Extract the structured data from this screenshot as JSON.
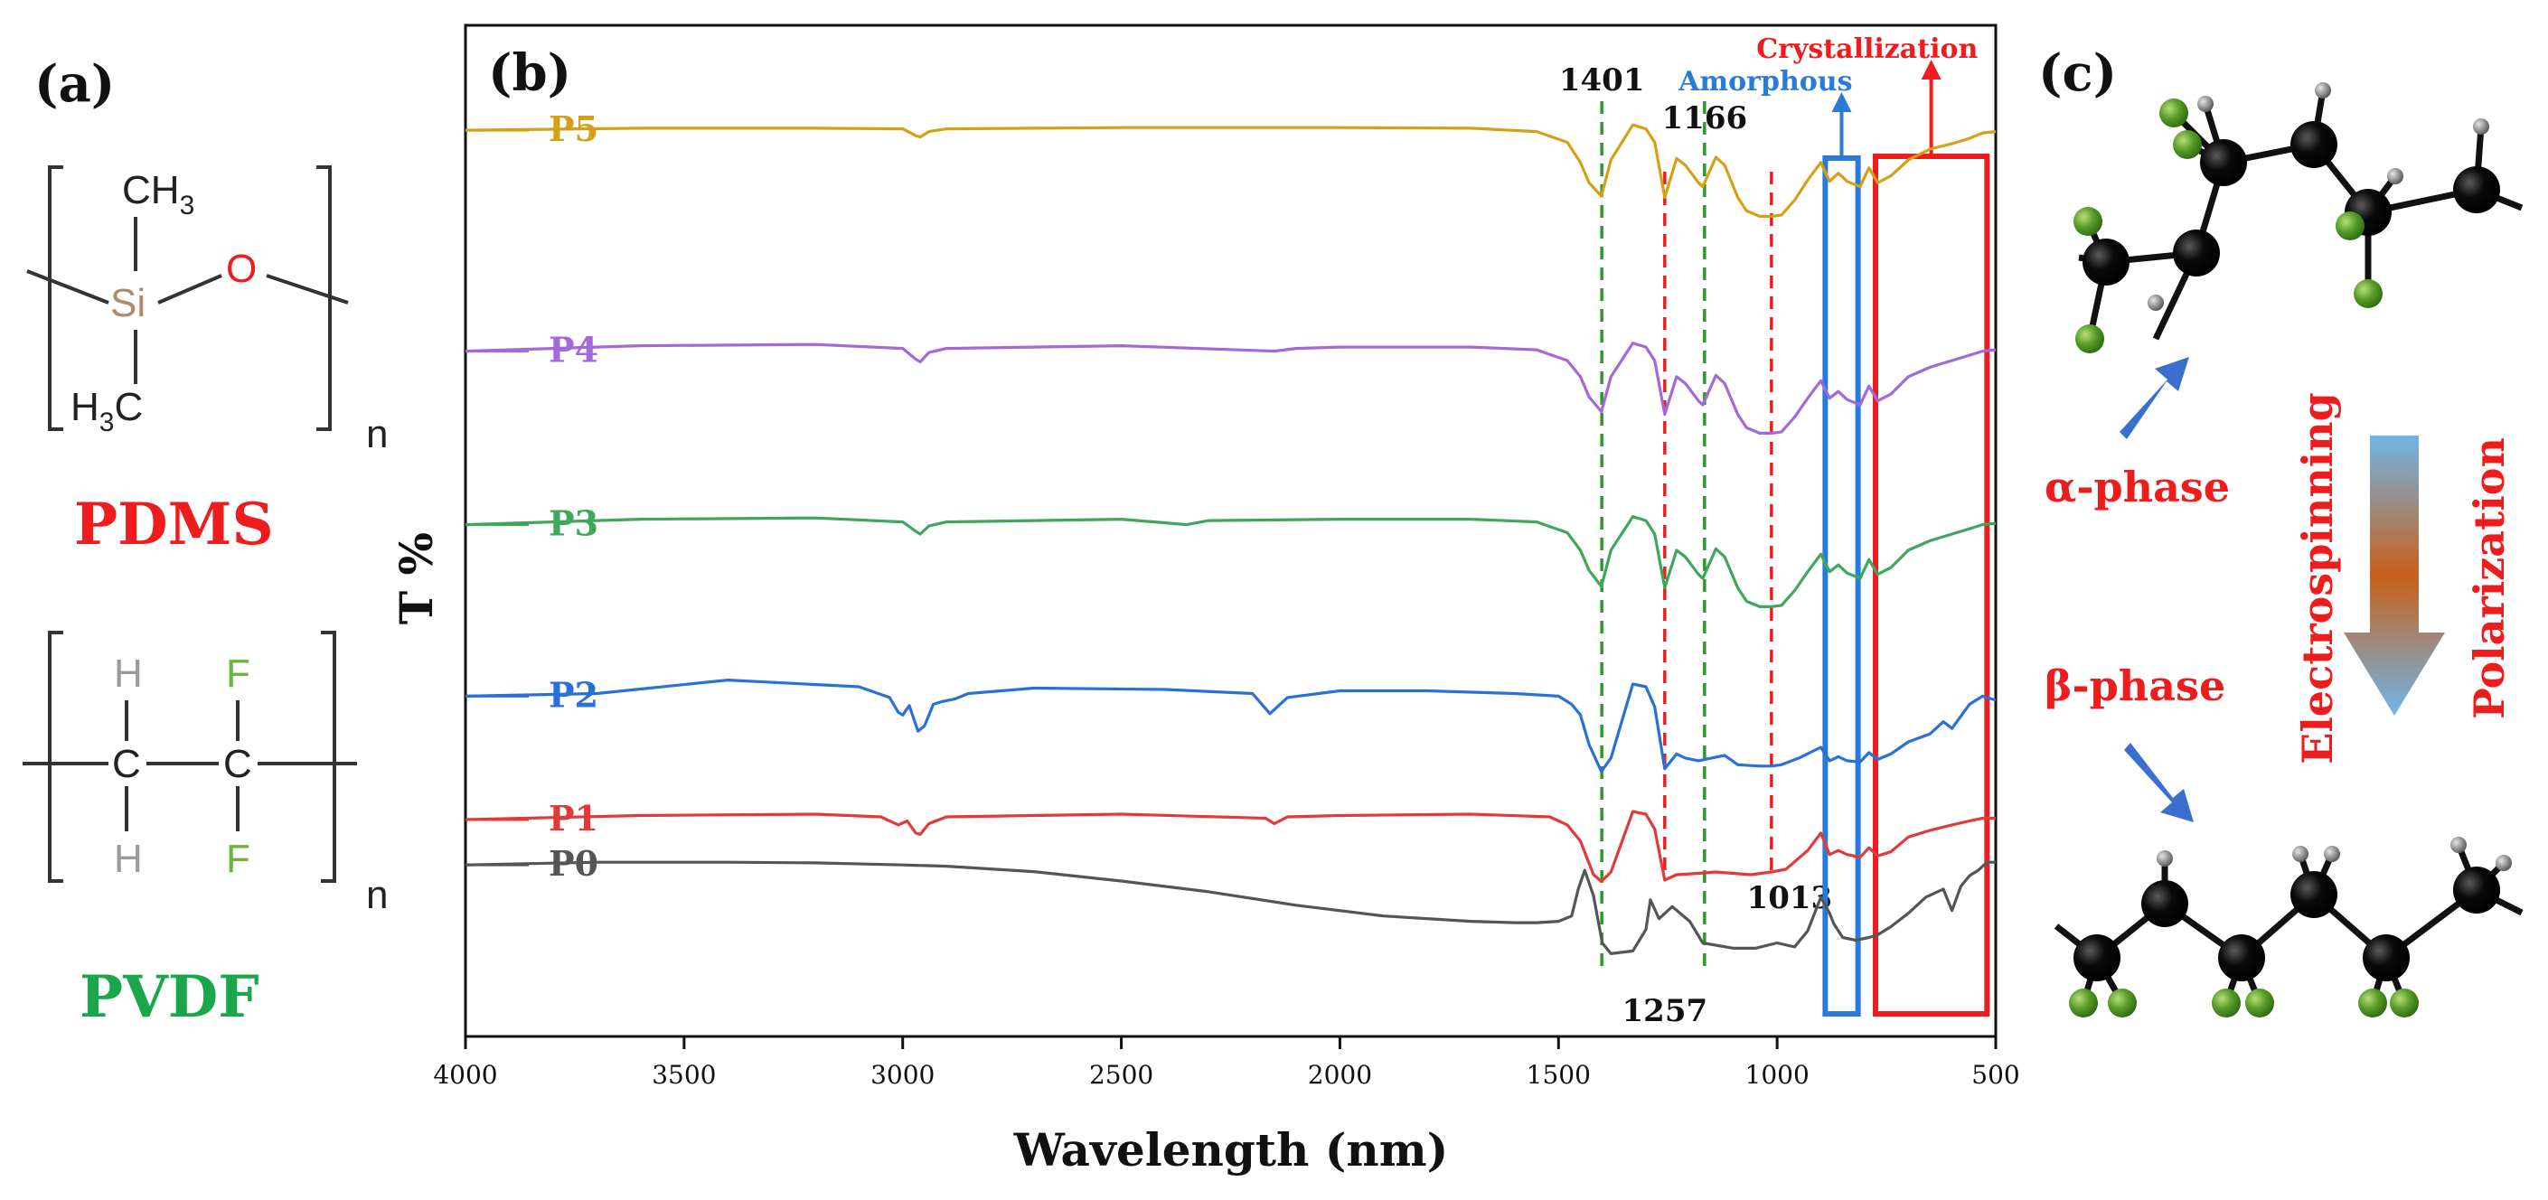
{
  "panels": {
    "a": "(a)",
    "b": "(b)",
    "c": "(c)"
  },
  "panel_a": {
    "pdms": {
      "name": "PDMS",
      "name_color": "#ee1c1c",
      "ch3_top": "CH",
      "ch3_top_sub": "3",
      "si": "Si",
      "o": "O",
      "h3c_bottom": "H",
      "h3c_bottom_sub": "3",
      "h3c_bottom_c": "C",
      "n": "n",
      "si_color": "#b08a6a",
      "o_color": "#ee1c1c"
    },
    "pvdf": {
      "name": "PVDF",
      "name_color": "#1aa64a",
      "h_top": "H",
      "h_bottom": "H",
      "c1": "C",
      "c2": "C",
      "f_top": "F",
      "f_bottom": "F",
      "n": "n",
      "h_color": "#9a9a9a",
      "f_color": "#6db33f"
    }
  },
  "panel_c": {
    "alpha": "α-phase",
    "beta": "β-phase",
    "electrospinning": "Electrospinning",
    "polarization": "Polarization",
    "carbon_color": "#0a0a0a",
    "fluorine_color": "#5a9e2a",
    "hydrogen_color": "#9b9b9b",
    "arrow_color": "#3b6fcf"
  },
  "chart_data": {
    "type": "line",
    "title": "",
    "xlabel": "Wavelength (nm)",
    "ylabel": "T %",
    "xlim": [
      4000,
      500
    ],
    "x_ticks": [
      4000,
      3500,
      3000,
      2500,
      2000,
      1500,
      1000,
      500
    ],
    "grid": false,
    "series": [
      {
        "name": "P5",
        "color": "#d4a017",
        "offset": 85,
        "x": [
          4000,
          3600,
          3200,
          3000,
          2970,
          2960,
          2940,
          2900,
          2500,
          2000,
          1700,
          1550,
          1480,
          1450,
          1430,
          1402,
          1380,
          1330,
          1300,
          1280,
          1257,
          1230,
          1210,
          1180,
          1170,
          1140,
          1120,
          1090,
          1070,
          1040,
          1013,
          990,
          960,
          930,
          900,
          880,
          860,
          840,
          810,
          790,
          770,
          740,
          700,
          650,
          600,
          560,
          530,
          500
        ],
        "y": [
          0.94,
          0.955,
          0.955,
          0.95,
          0.9,
          0.89,
          0.93,
          0.95,
          0.96,
          0.96,
          0.955,
          0.93,
          0.85,
          0.7,
          0.55,
          0.45,
          0.72,
          0.98,
          0.95,
          0.85,
          0.44,
          0.73,
          0.68,
          0.55,
          0.52,
          0.74,
          0.68,
          0.44,
          0.34,
          0.3,
          0.3,
          0.31,
          0.42,
          0.57,
          0.7,
          0.56,
          0.62,
          0.56,
          0.52,
          0.66,
          0.55,
          0.6,
          0.72,
          0.8,
          0.84,
          0.88,
          0.92,
          0.93
        ]
      },
      {
        "name": "P4",
        "color": "#a468d8",
        "offset": 60,
        "x": [
          4000,
          3600,
          3200,
          3000,
          2970,
          2960,
          2940,
          2900,
          2500,
          2150,
          2100,
          2000,
          1700,
          1550,
          1480,
          1450,
          1430,
          1402,
          1380,
          1330,
          1300,
          1280,
          1257,
          1230,
          1210,
          1180,
          1170,
          1140,
          1120,
          1090,
          1070,
          1040,
          1013,
          990,
          960,
          930,
          900,
          880,
          860,
          840,
          810,
          790,
          770,
          740,
          700,
          650,
          600,
          560,
          530,
          500
        ],
        "y": [
          0.91,
          0.95,
          0.96,
          0.93,
          0.85,
          0.83,
          0.9,
          0.93,
          0.95,
          0.91,
          0.93,
          0.94,
          0.94,
          0.92,
          0.84,
          0.72,
          0.57,
          0.46,
          0.72,
          0.97,
          0.94,
          0.84,
          0.44,
          0.72,
          0.67,
          0.54,
          0.51,
          0.73,
          0.67,
          0.44,
          0.34,
          0.3,
          0.3,
          0.31,
          0.42,
          0.56,
          0.69,
          0.56,
          0.61,
          0.55,
          0.51,
          0.65,
          0.54,
          0.59,
          0.72,
          0.79,
          0.84,
          0.88,
          0.91,
          0.92
        ]
      },
      {
        "name": "P3",
        "color": "#3fa65a",
        "offset": 40,
        "x": [
          4000,
          3600,
          3200,
          3000,
          2970,
          2960,
          2940,
          2900,
          2500,
          2350,
          2300,
          2000,
          1700,
          1550,
          1480,
          1450,
          1430,
          1402,
          1380,
          1330,
          1300,
          1280,
          1257,
          1230,
          1210,
          1180,
          1170,
          1140,
          1120,
          1090,
          1070,
          1040,
          1013,
          990,
          960,
          930,
          900,
          880,
          860,
          840,
          810,
          790,
          770,
          740,
          700,
          650,
          600,
          560,
          530,
          500
        ],
        "y": [
          0.91,
          0.95,
          0.96,
          0.93,
          0.86,
          0.84,
          0.9,
          0.93,
          0.95,
          0.91,
          0.94,
          0.95,
          0.95,
          0.93,
          0.85,
          0.72,
          0.57,
          0.45,
          0.72,
          0.97,
          0.94,
          0.84,
          0.44,
          0.72,
          0.67,
          0.54,
          0.51,
          0.73,
          0.67,
          0.44,
          0.34,
          0.3,
          0.3,
          0.31,
          0.42,
          0.56,
          0.69,
          0.56,
          0.61,
          0.55,
          0.51,
          0.65,
          0.54,
          0.59,
          0.72,
          0.79,
          0.84,
          0.88,
          0.91,
          0.92
        ]
      },
      {
        "name": "P2",
        "color": "#2a70d8",
        "offset": 21,
        "x": [
          4000,
          3700,
          3400,
          3100,
          3030,
          3010,
          3000,
          2985,
          2965,
          2950,
          2930,
          2910,
          2880,
          2850,
          2700,
          2400,
          2200,
          2160,
          2120,
          2000,
          1800,
          1600,
          1500,
          1470,
          1450,
          1430,
          1402,
          1380,
          1330,
          1300,
          1280,
          1257,
          1230,
          1210,
          1180,
          1150,
          1120,
          1090,
          1040,
          1013,
          990,
          950,
          900,
          880,
          860,
          840,
          810,
          790,
          770,
          740,
          700,
          650,
          620,
          600,
          560,
          530,
          500
        ],
        "y": [
          0.86,
          0.88,
          0.98,
          0.93,
          0.85,
          0.74,
          0.72,
          0.79,
          0.6,
          0.64,
          0.8,
          0.82,
          0.84,
          0.88,
          0.92,
          0.91,
          0.88,
          0.73,
          0.85,
          0.9,
          0.9,
          0.88,
          0.86,
          0.8,
          0.72,
          0.5,
          0.3,
          0.4,
          0.95,
          0.93,
          0.78,
          0.32,
          0.43,
          0.4,
          0.38,
          0.4,
          0.42,
          0.35,
          0.34,
          0.34,
          0.35,
          0.4,
          0.48,
          0.38,
          0.41,
          0.38,
          0.37,
          0.44,
          0.39,
          0.43,
          0.52,
          0.58,
          0.67,
          0.62,
          0.8,
          0.86,
          0.83
        ]
      },
      {
        "name": "P1",
        "color": "#e03a3a",
        "offset": 6,
        "x": [
          4000,
          3600,
          3200,
          3050,
          3010,
          2990,
          2970,
          2960,
          2940,
          2900,
          2500,
          2170,
          2150,
          2120,
          2000,
          1700,
          1520,
          1480,
          1450,
          1420,
          1402,
          1380,
          1330,
          1300,
          1280,
          1257,
          1230,
          1180,
          1140,
          1100,
          1060,
          1013,
          980,
          930,
          900,
          880,
          860,
          840,
          810,
          790,
          770,
          740,
          700,
          650,
          600,
          560,
          530,
          500
        ],
        "y": [
          0.91,
          0.94,
          0.95,
          0.93,
          0.87,
          0.9,
          0.81,
          0.8,
          0.88,
          0.93,
          0.95,
          0.92,
          0.88,
          0.93,
          0.94,
          0.95,
          0.93,
          0.87,
          0.75,
          0.5,
          0.45,
          0.52,
          0.97,
          0.95,
          0.84,
          0.46,
          0.5,
          0.51,
          0.52,
          0.51,
          0.5,
          0.52,
          0.54,
          0.68,
          0.81,
          0.65,
          0.68,
          0.65,
          0.63,
          0.7,
          0.64,
          0.67,
          0.78,
          0.83,
          0.87,
          0.9,
          0.92,
          0.92
        ]
      },
      {
        "name": "P0",
        "color": "#555555",
        "offset": 0,
        "x": [
          4000,
          3700,
          3400,
          3200,
          3000,
          2950,
          2900,
          2700,
          2500,
          2300,
          2100,
          1900,
          1700,
          1600,
          1550,
          1500,
          1470,
          1455,
          1440,
          1420,
          1400,
          1380,
          1330,
          1300,
          1290,
          1270,
          1240,
          1200,
          1170,
          1100,
          1050,
          1000,
          960,
          930,
          900,
          880,
          870,
          850,
          820,
          790,
          770,
          740,
          700,
          660,
          620,
          600,
          580,
          560,
          540,
          520,
          500
        ],
        "y": [
          0.96,
          0.98,
          0.98,
          0.975,
          0.96,
          0.955,
          0.95,
          0.91,
          0.84,
          0.76,
          0.66,
          0.58,
          0.54,
          0.53,
          0.53,
          0.54,
          0.58,
          0.78,
          0.92,
          0.73,
          0.38,
          0.3,
          0.32,
          0.48,
          0.7,
          0.56,
          0.65,
          0.54,
          0.38,
          0.34,
          0.34,
          0.38,
          0.35,
          0.47,
          0.72,
          0.6,
          0.52,
          0.42,
          0.4,
          0.42,
          0.44,
          0.5,
          0.6,
          0.72,
          0.78,
          0.62,
          0.8,
          0.88,
          0.92,
          0.98,
          0.98
        ]
      }
    ],
    "scale": 31,
    "peaks": [
      {
        "label": "1401",
        "x": 1401,
        "color": "#2a9a2a",
        "label_pos": "top"
      },
      {
        "label": "1166",
        "x": 1166,
        "color": "#2a9a2a",
        "label_pos": "top"
      },
      {
        "label": "1257",
        "x": 1257,
        "color": "#ee1c1c",
        "label_pos": "bottom"
      },
      {
        "label": "1013",
        "x": 1013,
        "color": "#ee1c1c",
        "label_pos": "bottom"
      }
    ],
    "regions": [
      {
        "label": "Amorphous",
        "x_from": 890,
        "x_to": 815,
        "color": "#2a7ad8"
      },
      {
        "label": "Crystallization",
        "x_from": 775,
        "x_to": 520,
        "color": "#ee1c1c"
      }
    ]
  }
}
